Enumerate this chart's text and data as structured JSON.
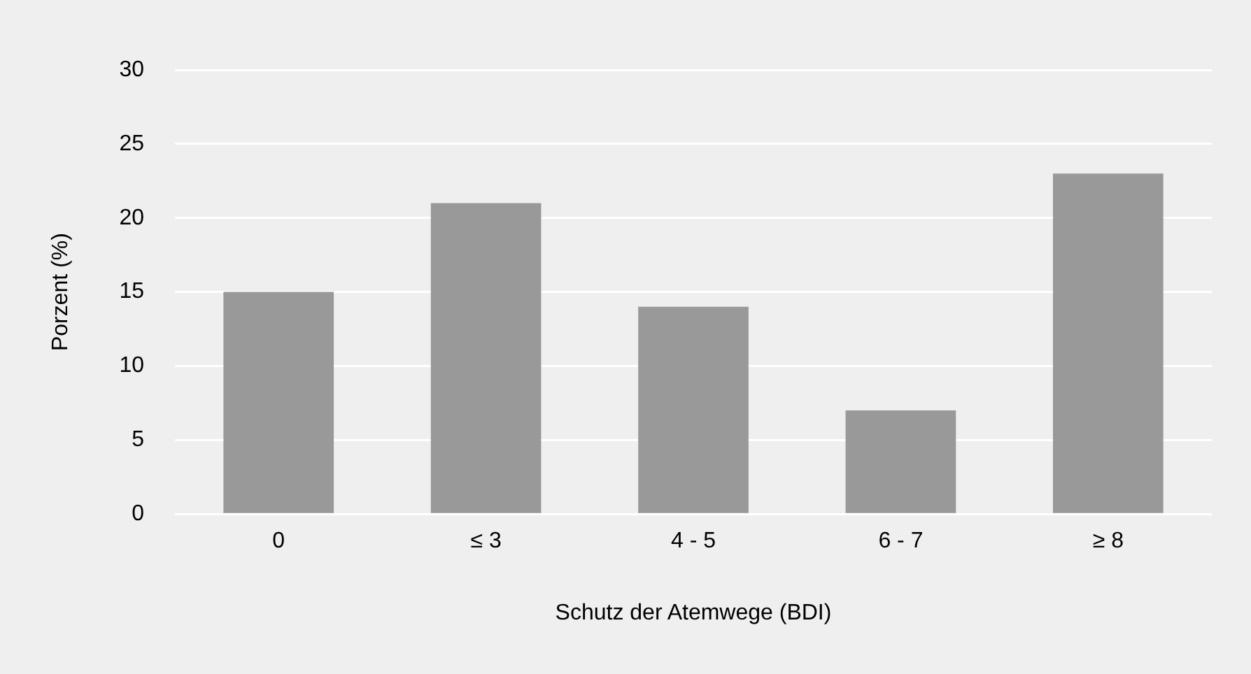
{
  "chart_data": {
    "type": "bar",
    "xlabel": "Schutz der Atemwege (BDI)",
    "ylabel": "Porzent (%)",
    "categories": [
      "0",
      "≤ 3",
      "4 - 5",
      "6 - 7",
      "≥ 8"
    ],
    "values": [
      15,
      21,
      14,
      7,
      23
    ],
    "color": "#999999",
    "ylim": [
      0,
      30
    ],
    "yticks": [
      0,
      5,
      10,
      15,
      20,
      25,
      30
    ],
    "grid": "y"
  }
}
